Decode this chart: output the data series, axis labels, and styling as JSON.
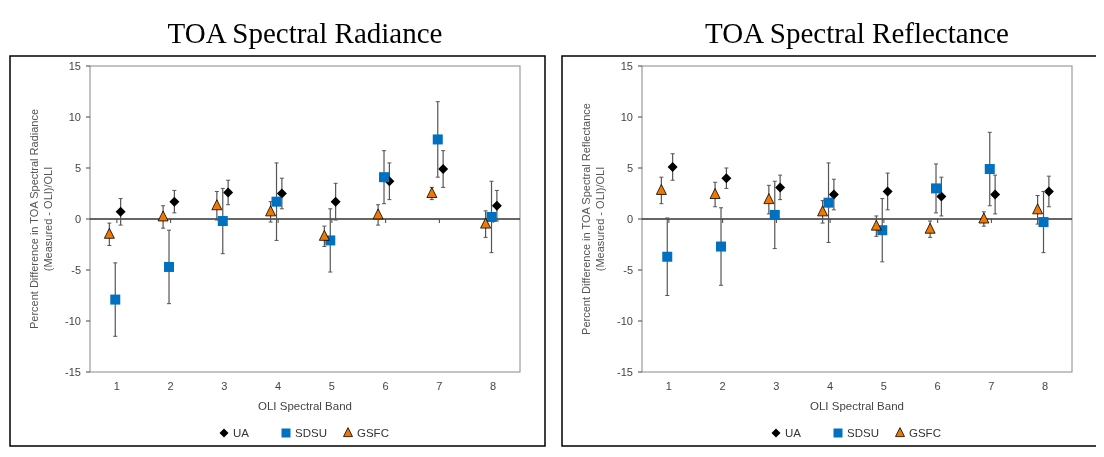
{
  "chart_data": [
    {
      "type": "scatter",
      "title": "TOA Spectral Radiance",
      "xlabel": "OLI Spectral Band",
      "ylabel": "Percent Difference in TOA Spectral Radiance\n(Measured - OLI)/OLI",
      "ref_lines": [
        {
          "axis": "y",
          "value": 0,
          "color": "#333333"
        }
      ],
      "categories": [
        "1",
        "2",
        "3",
        "4",
        "5",
        "6",
        "7",
        "8"
      ],
      "ylim": [
        -15,
        15
      ],
      "yticks": [
        -15,
        -10,
        -5,
        0,
        5,
        10,
        15
      ],
      "legend": "bottom",
      "grid": false,
      "series": [
        {
          "name": "UA",
          "color": "#000000",
          "marker": "diamond",
          "values": [
            0.7,
            1.7,
            2.6,
            2.5,
            1.7,
            3.7,
            4.9,
            1.3
          ],
          "errors": [
            1.3,
            1.1,
            1.2,
            1.5,
            1.8,
            1.8,
            1.8,
            1.5
          ]
        },
        {
          "name": "SDSU",
          "color": "#0070c0",
          "marker": "square",
          "values": [
            -7.9,
            -4.7,
            -0.2,
            1.7,
            -2.1,
            4.1,
            7.8,
            0.2
          ],
          "errors": [
            3.6,
            3.6,
            3.2,
            3.8,
            3.1,
            2.6,
            3.7,
            3.5
          ]
        },
        {
          "name": "GSFC",
          "color": "#f07800",
          "marker": "triangle",
          "values": [
            -1.5,
            0.2,
            1.3,
            0.7,
            -1.7,
            0.4,
            2.5,
            -0.5
          ],
          "errors": [
            1.1,
            1.1,
            1.4,
            1.0,
            1.0,
            1.0,
            0.6,
            1.3
          ]
        }
      ]
    },
    {
      "type": "scatter",
      "title": "TOA Spectral Reflectance",
      "xlabel": "OLI Spectral Band",
      "ylabel": "Percent Difference in TOA Spectral Reflectance\n(Measured - OLI)/OLI",
      "ref_lines": [
        {
          "axis": "y",
          "value": 0,
          "color": "#333333"
        }
      ],
      "categories": [
        "1",
        "2",
        "3",
        "4",
        "5",
        "6",
        "7",
        "8"
      ],
      "ylim": [
        -15,
        15
      ],
      "yticks": [
        -15,
        -10,
        -5,
        0,
        5,
        10,
        15
      ],
      "legend": "bottom",
      "grid": false,
      "series": [
        {
          "name": "UA",
          "color": "#000000",
          "marker": "diamond",
          "values": [
            5.1,
            4.0,
            3.1,
            2.4,
            2.7,
            2.2,
            2.4,
            2.7
          ],
          "errors": [
            1.3,
            1.0,
            1.2,
            1.5,
            1.8,
            1.9,
            1.9,
            1.5
          ]
        },
        {
          "name": "SDSU",
          "color": "#0070c0",
          "marker": "square",
          "values": [
            -3.7,
            -2.7,
            0.4,
            1.6,
            -1.1,
            3.0,
            4.9,
            -0.3
          ],
          "errors": [
            3.8,
            3.8,
            3.3,
            3.9,
            3.1,
            2.4,
            3.6,
            3.0
          ]
        },
        {
          "name": "GSFC",
          "color": "#f07800",
          "marker": "triangle",
          "values": [
            2.8,
            2.4,
            1.9,
            0.7,
            -0.7,
            -1.0,
            0.0,
            0.9
          ],
          "errors": [
            1.3,
            1.2,
            1.4,
            1.1,
            1.0,
            0.8,
            0.7,
            1.4
          ]
        }
      ]
    }
  ]
}
